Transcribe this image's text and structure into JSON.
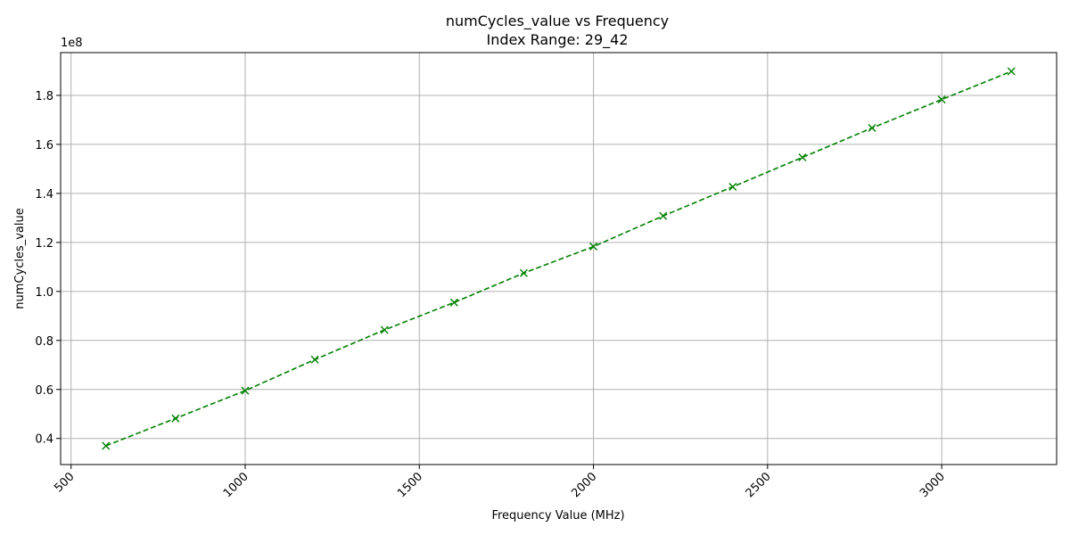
{
  "chart_data": {
    "type": "line",
    "title": "numCycles_value vs Frequency",
    "subtitle": "Index Range: 29_42",
    "xlabel": "Frequency Value (MHz)",
    "ylabel": "numCycles_value",
    "y_offset_label": "1e8",
    "xlim": [
      500,
      3200
    ],
    "ylim": [
      0.37,
      1.9
    ],
    "x_ticks": [
      500,
      1000,
      1500,
      2000,
      2500,
      3000
    ],
    "y_ticks": [
      0.4,
      0.6,
      0.8,
      1.0,
      1.2,
      1.4,
      1.6,
      1.8
    ],
    "y_tick_labels": [
      "0.4",
      "0.6",
      "0.8",
      "1.0",
      "1.2",
      "1.4",
      "1.6",
      "1.8"
    ],
    "grid": true,
    "series": [
      {
        "color": "#008000",
        "line_style": "dashed",
        "marker": "x",
        "x": [
          600,
          800,
          1000,
          1200,
          1400,
          1600,
          1800,
          2000,
          2200,
          2400,
          2600,
          2800,
          3000,
          3200
        ],
        "y": [
          0.37,
          0.482,
          0.595,
          0.722,
          0.843,
          0.955,
          1.075,
          1.183,
          1.308,
          1.427,
          1.547,
          1.667,
          1.783,
          1.898
        ]
      }
    ]
  }
}
